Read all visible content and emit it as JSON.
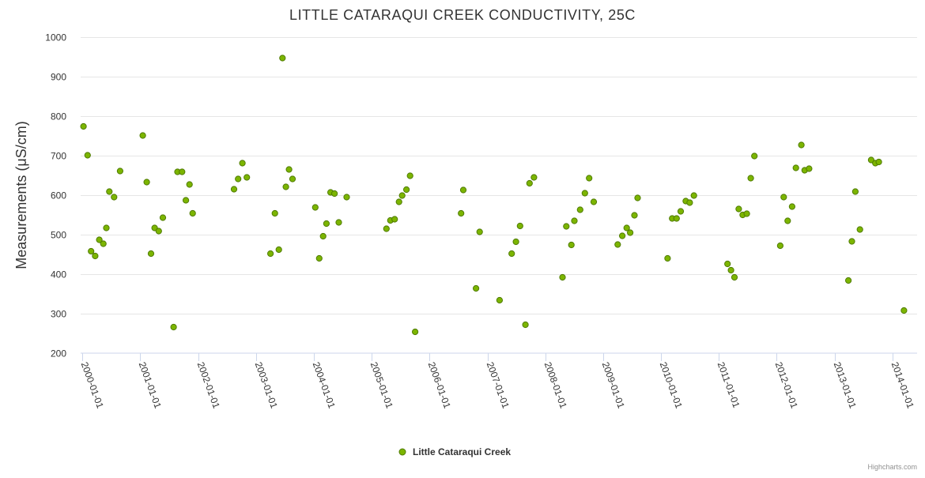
{
  "chart_data": {
    "type": "scatter",
    "title": "LITTLE CATARAQUI CREEK CONDUCTIVITY, 25C",
    "ylabel": "Measurements (μS/cm)",
    "xlabel": "",
    "ylim": [
      200,
      1000
    ],
    "yticks": [
      200,
      300,
      400,
      500,
      600,
      700,
      800,
      900,
      1000
    ],
    "xlim": [
      "2000-01-01",
      "2014-01-01"
    ],
    "xticks": [
      "2000-01-01",
      "2001-01-01",
      "2002-01-01",
      "2003-01-01",
      "2004-01-01",
      "2005-01-01",
      "2006-01-01",
      "2007-01-01",
      "2008-01-01",
      "2009-01-01",
      "2010-01-01",
      "2011-01-01",
      "2012-01-01",
      "2013-01-01",
      "2014-01-01"
    ],
    "grid": true,
    "legend_position": "bottom-center",
    "credits": "Highcharts.com",
    "colors": {
      "marker_fill": "#7cb500",
      "marker_stroke": "#4e7a00",
      "gridline": "#e6e6e6",
      "axis_line": "#ccd6eb"
    },
    "series": [
      {
        "name": "Little Cataraqui Creek",
        "points": [
          {
            "x": "2000-01-09",
            "y": 774
          },
          {
            "x": "2000-02-04",
            "y": 701
          },
          {
            "x": "2000-02-26",
            "y": 458
          },
          {
            "x": "2000-03-23",
            "y": 446
          },
          {
            "x": "2000-04-18",
            "y": 487
          },
          {
            "x": "2000-05-13",
            "y": 477
          },
          {
            "x": "2000-06-01",
            "y": 517
          },
          {
            "x": "2000-06-20",
            "y": 609
          },
          {
            "x": "2000-07-20",
            "y": 595
          },
          {
            "x": "2000-08-27",
            "y": 661
          },
          {
            "x": "2001-01-17",
            "y": 751
          },
          {
            "x": "2001-02-11",
            "y": 633
          },
          {
            "x": "2001-03-10",
            "y": 452
          },
          {
            "x": "2001-04-02",
            "y": 517
          },
          {
            "x": "2001-04-28",
            "y": 509
          },
          {
            "x": "2001-05-24",
            "y": 543
          },
          {
            "x": "2001-07-31",
            "y": 266
          },
          {
            "x": "2001-08-24",
            "y": 659
          },
          {
            "x": "2001-09-22",
            "y": 659
          },
          {
            "x": "2001-10-16",
            "y": 587
          },
          {
            "x": "2001-11-08",
            "y": 627
          },
          {
            "x": "2001-11-28",
            "y": 554
          },
          {
            "x": "2002-08-16",
            "y": 615
          },
          {
            "x": "2002-09-11",
            "y": 641
          },
          {
            "x": "2002-10-08",
            "y": 681
          },
          {
            "x": "2002-11-05",
            "y": 645
          },
          {
            "x": "2003-04-03",
            "y": 452
          },
          {
            "x": "2003-05-01",
            "y": 554
          },
          {
            "x": "2003-05-26",
            "y": 462
          },
          {
            "x": "2003-06-18",
            "y": 947
          },
          {
            "x": "2003-07-09",
            "y": 621
          },
          {
            "x": "2003-07-29",
            "y": 665
          },
          {
            "x": "2003-08-20",
            "y": 641
          },
          {
            "x": "2004-01-11",
            "y": 569
          },
          {
            "x": "2004-02-05",
            "y": 440
          },
          {
            "x": "2004-02-29",
            "y": 496
          },
          {
            "x": "2004-03-21",
            "y": 528
          },
          {
            "x": "2004-04-16",
            "y": 607
          },
          {
            "x": "2004-05-11",
            "y": 604
          },
          {
            "x": "2004-06-07",
            "y": 531
          },
          {
            "x": "2004-07-27",
            "y": 595
          },
          {
            "x": "2005-04-04",
            "y": 515
          },
          {
            "x": "2005-04-29",
            "y": 536
          },
          {
            "x": "2005-05-26",
            "y": 539
          },
          {
            "x": "2005-06-22",
            "y": 583
          },
          {
            "x": "2005-07-12",
            "y": 599
          },
          {
            "x": "2005-08-08",
            "y": 614
          },
          {
            "x": "2005-08-31",
            "y": 649
          },
          {
            "x": "2005-10-02",
            "y": 254
          },
          {
            "x": "2006-07-19",
            "y": 554
          },
          {
            "x": "2006-08-02",
            "y": 613
          },
          {
            "x": "2006-10-21",
            "y": 364
          },
          {
            "x": "2006-11-13",
            "y": 507
          },
          {
            "x": "2007-03-19",
            "y": 334
          },
          {
            "x": "2007-06-03",
            "y": 452
          },
          {
            "x": "2007-06-30",
            "y": 482
          },
          {
            "x": "2007-07-26",
            "y": 522
          },
          {
            "x": "2007-08-29",
            "y": 272
          },
          {
            "x": "2007-09-24",
            "y": 630
          },
          {
            "x": "2007-10-22",
            "y": 645
          },
          {
            "x": "2008-04-19",
            "y": 392
          },
          {
            "x": "2008-05-13",
            "y": 521
          },
          {
            "x": "2008-06-14",
            "y": 474
          },
          {
            "x": "2008-07-03",
            "y": 535
          },
          {
            "x": "2008-08-08",
            "y": 563
          },
          {
            "x": "2008-09-07",
            "y": 605
          },
          {
            "x": "2008-10-04",
            "y": 643
          },
          {
            "x": "2008-11-02",
            "y": 583
          },
          {
            "x": "2009-04-02",
            "y": 475
          },
          {
            "x": "2009-05-01",
            "y": 497
          },
          {
            "x": "2009-05-29",
            "y": 517
          },
          {
            "x": "2009-06-20",
            "y": 505
          },
          {
            "x": "2009-07-17",
            "y": 549
          },
          {
            "x": "2009-08-06",
            "y": 593
          },
          {
            "x": "2010-02-11",
            "y": 440
          },
          {
            "x": "2010-03-12",
            "y": 541
          },
          {
            "x": "2010-04-09",
            "y": 541
          },
          {
            "x": "2010-05-05",
            "y": 559
          },
          {
            "x": "2010-06-06",
            "y": 585
          },
          {
            "x": "2010-07-01",
            "y": 581
          },
          {
            "x": "2010-07-27",
            "y": 599
          },
          {
            "x": "2011-02-24",
            "y": 426
          },
          {
            "x": "2011-03-18",
            "y": 410
          },
          {
            "x": "2011-04-09",
            "y": 392
          },
          {
            "x": "2011-05-06",
            "y": 565
          },
          {
            "x": "2011-05-31",
            "y": 550
          },
          {
            "x": "2011-06-26",
            "y": 553
          },
          {
            "x": "2011-07-21",
            "y": 643
          },
          {
            "x": "2011-08-13",
            "y": 699
          },
          {
            "x": "2012-01-23",
            "y": 472
          },
          {
            "x": "2012-02-14",
            "y": 595
          },
          {
            "x": "2012-03-10",
            "y": 535
          },
          {
            "x": "2012-04-07",
            "y": 571
          },
          {
            "x": "2012-05-01",
            "y": 669
          },
          {
            "x": "2012-06-04",
            "y": 727
          },
          {
            "x": "2012-06-25",
            "y": 663
          },
          {
            "x": "2012-07-23",
            "y": 667
          },
          {
            "x": "2013-03-28",
            "y": 384
          },
          {
            "x": "2013-04-19",
            "y": 483
          },
          {
            "x": "2013-05-11",
            "y": 609
          },
          {
            "x": "2013-06-09",
            "y": 513
          },
          {
            "x": "2013-08-19",
            "y": 689
          },
          {
            "x": "2013-09-14",
            "y": 681
          },
          {
            "x": "2013-10-06",
            "y": 684
          },
          {
            "x": "2014-03-14",
            "y": 308
          }
        ]
      }
    ]
  }
}
